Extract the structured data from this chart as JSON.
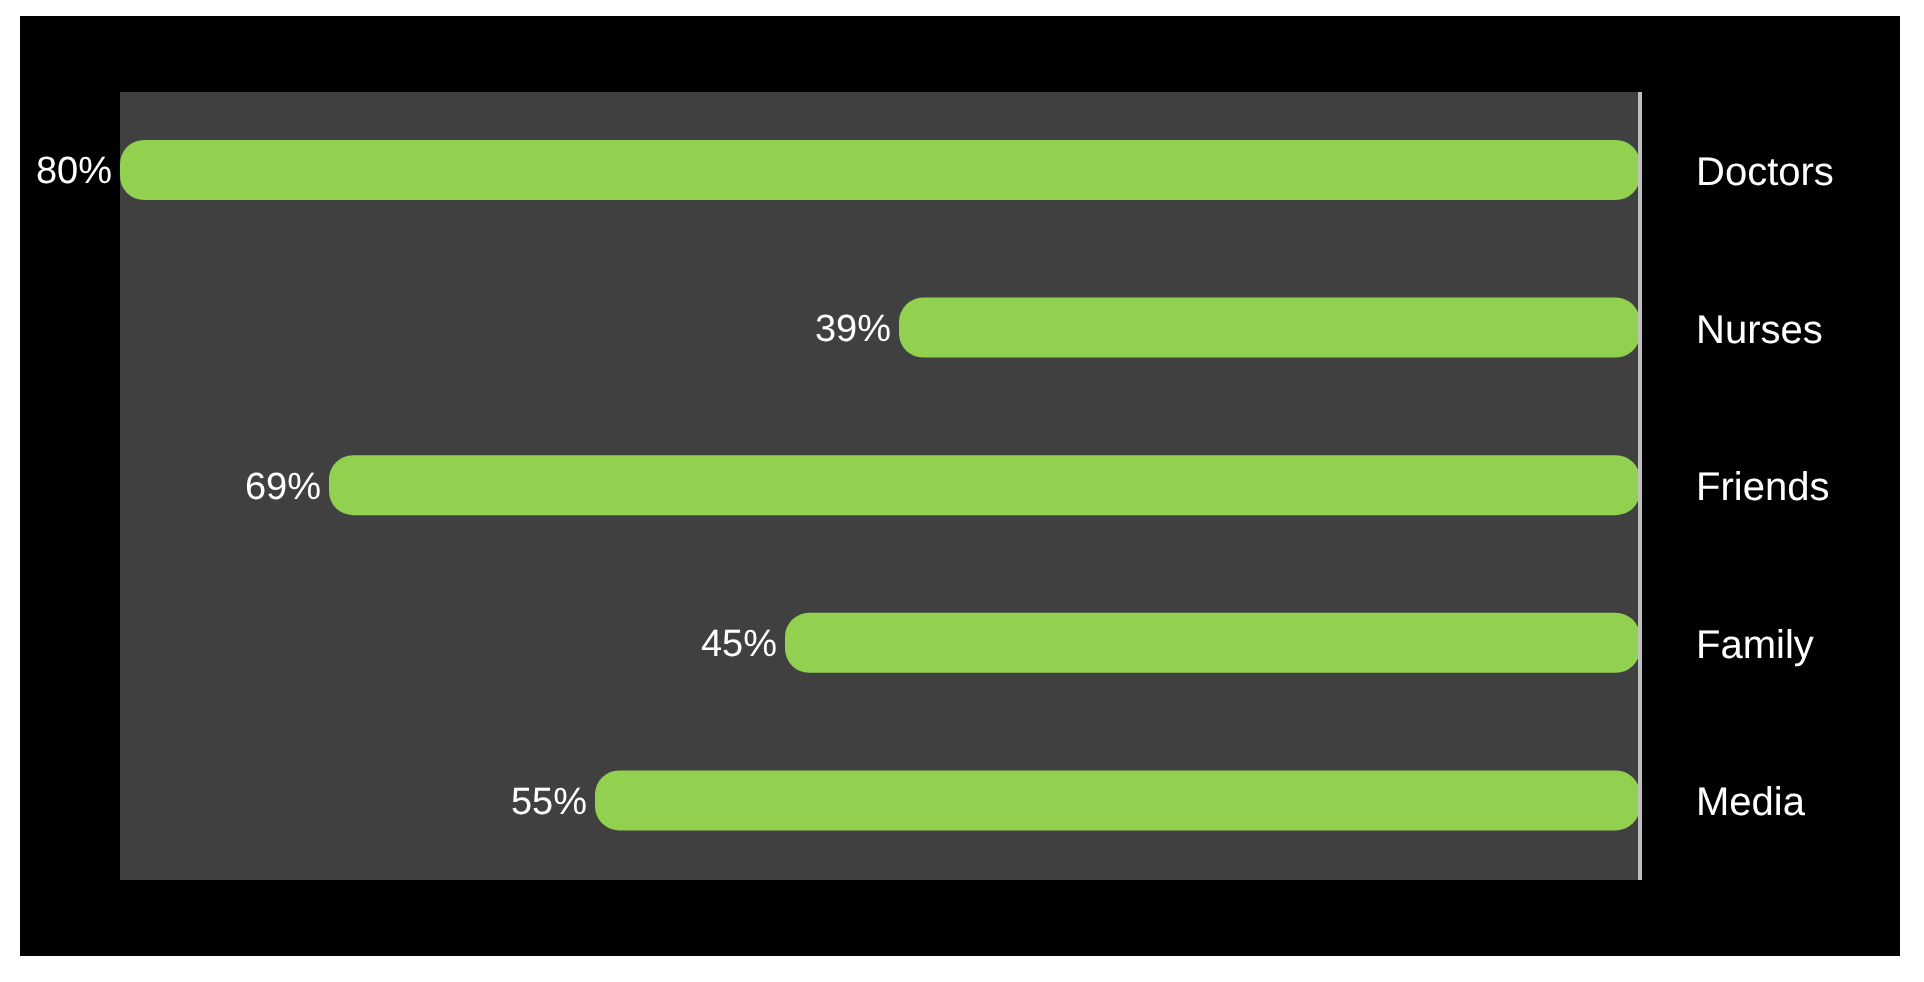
{
  "chart_data": {
    "type": "bar",
    "orientation": "horizontal",
    "categories": [
      "Doctors",
      "Nurses",
      "Friends",
      "Family",
      "Media"
    ],
    "values": [
      80,
      39,
      69,
      45,
      55
    ],
    "value_labels": [
      "80%",
      "39%",
      "69%",
      "45%",
      "55%"
    ],
    "color": "#92d050"
  }
}
